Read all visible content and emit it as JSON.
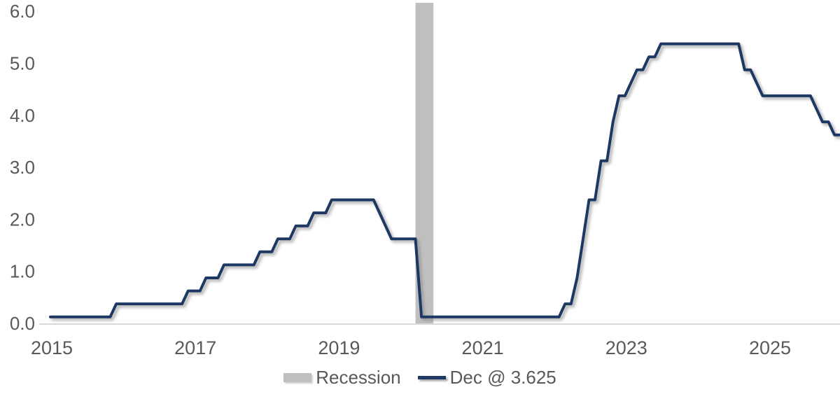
{
  "chart_data": {
    "type": "line",
    "title": "",
    "xlabel": "",
    "ylabel": "",
    "grid": "off",
    "background": "#FFFFFF",
    "x_range_decimal_years": [
      2014.95,
      2026.08
    ],
    "y_range": [
      0,
      6.15
    ],
    "x_ticks": [
      "2015",
      "2017",
      "2019",
      "2021",
      "2023",
      "2025"
    ],
    "y_ticks": [
      "0.0",
      "1.0",
      "2.0",
      "3.0",
      "4.0",
      "5.0",
      "6.0"
    ],
    "series": [
      {
        "name": "Dec @ 3.625",
        "color": "#1F3864",
        "line_width": 4,
        "sampling": "monthly",
        "start_month": "2015-01",
        "end_month": "2026-01",
        "rate_changes": [
          [
            "2015-01",
            0.125
          ],
          [
            "2015-12",
            0.375
          ],
          [
            "2016-12",
            0.625
          ],
          [
            "2017-03",
            0.875
          ],
          [
            "2017-06",
            1.125
          ],
          [
            "2017-12",
            1.375
          ],
          [
            "2018-03",
            1.625
          ],
          [
            "2018-06",
            1.875
          ],
          [
            "2018-09",
            2.125
          ],
          [
            "2018-12",
            2.375
          ],
          [
            "2019-08",
            2.125
          ],
          [
            "2019-09",
            1.875
          ],
          [
            "2019-10",
            1.625
          ],
          [
            "2020-03",
            0.125
          ],
          [
            "2022-03",
            0.375
          ],
          [
            "2022-05",
            0.875
          ],
          [
            "2022-06",
            1.625
          ],
          [
            "2022-07",
            2.375
          ],
          [
            "2022-09",
            3.125
          ],
          [
            "2022-11",
            3.875
          ],
          [
            "2022-12",
            4.375
          ],
          [
            "2023-02",
            4.625
          ],
          [
            "2023-03",
            4.875
          ],
          [
            "2023-05",
            5.125
          ],
          [
            "2023-07",
            5.375
          ],
          [
            "2024-09",
            4.875
          ],
          [
            "2024-11",
            4.625
          ],
          [
            "2024-12",
            4.375
          ],
          [
            "2025-09",
            4.125
          ],
          [
            "2025-10",
            3.875
          ],
          [
            "2025-12",
            3.625
          ]
        ]
      }
    ],
    "recession_bands": [
      {
        "start": "2020-02",
        "end": "2020-05",
        "color": "#BFBFBF"
      }
    ],
    "legend": {
      "position": "bottom-center",
      "entries": [
        {
          "label": "Recession",
          "swatch": "area",
          "color": "#BFBFBF"
        },
        {
          "label": "Dec @ 3.625",
          "swatch": "line",
          "color": "#1F3864"
        }
      ]
    }
  },
  "colors": {
    "axis_line": "#D9D9D9",
    "tick_text": "#595959",
    "line": "#1F3864",
    "recession_band": "#BFBFBF"
  }
}
